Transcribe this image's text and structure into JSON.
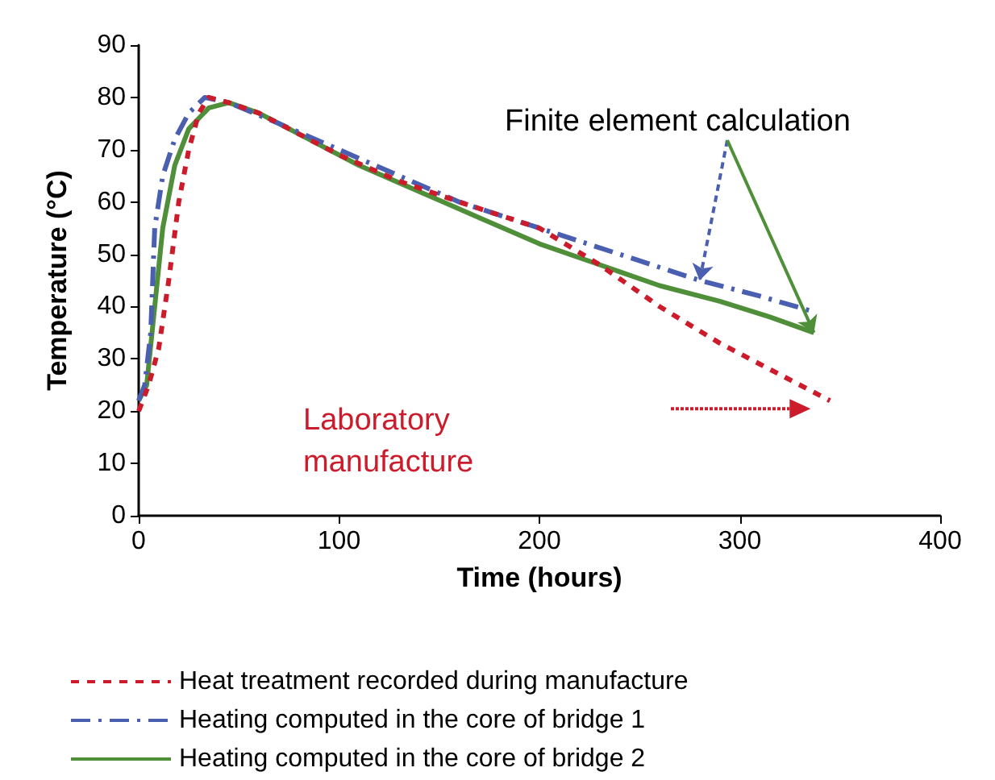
{
  "chart_data": {
    "type": "line",
    "xlabel": "Time (hours)",
    "ylabel": "Temperature (°C)",
    "xlim": [
      0,
      400
    ],
    "xticks": [
      0,
      100,
      200,
      300,
      400
    ],
    "ylim": [
      0,
      90
    ],
    "yticks": [
      0,
      10,
      20,
      30,
      40,
      50,
      60,
      70,
      80,
      90
    ],
    "grid": false,
    "legend": "bottom",
    "marker": "none",
    "annotations": [
      {
        "text": "Finite element calculation",
        "x": 337,
        "y": 35
      },
      "Laboratory manufacture"
    ],
    "series": [
      {
        "name": "Heat treatment recorded during manufacture",
        "color": "#cc1b2b",
        "line_style": "dotted",
        "x": [
          0,
          5,
          10,
          15,
          20,
          25,
          30,
          35,
          45,
          60,
          80,
          100,
          130,
          160,
          200,
          230,
          260,
          290,
          320,
          345
        ],
        "values": [
          20,
          25,
          32,
          45,
          60,
          70,
          77,
          80,
          79,
          77,
          73,
          69,
          64,
          60,
          55,
          48,
          40,
          33,
          27,
          22
        ]
      },
      {
        "name": "Heating computed in the core of bridge 1",
        "color": "#4a5fb0",
        "line_style": "dashed",
        "x": [
          0,
          3,
          6,
          8,
          12,
          18,
          25,
          33,
          45,
          70,
          100,
          130,
          160,
          200,
          240,
          280,
          310,
          337
        ],
        "values": [
          22,
          25,
          35,
          55,
          65,
          72,
          77,
          80,
          79,
          75,
          70,
          65,
          60,
          55,
          50,
          45,
          42,
          39
        ]
      },
      {
        "name": "Heating computed in the core of bridge 2",
        "color": "#4f8f3a",
        "line_style": "solid",
        "x": [
          0,
          4,
          8,
          12,
          18,
          25,
          35,
          45,
          60,
          80,
          110,
          140,
          170,
          200,
          230,
          260,
          290,
          315,
          337
        ],
        "values": [
          22,
          25,
          40,
          55,
          67,
          74,
          78,
          79,
          77,
          73,
          67,
          62,
          57,
          52,
          48,
          44,
          41,
          38,
          35
        ]
      }
    ]
  }
}
